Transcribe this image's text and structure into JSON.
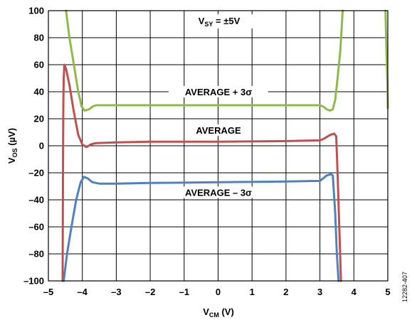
{
  "chart_data": {
    "type": "line",
    "xlabel_main": "V",
    "xlabel_sub": "CM",
    "xlabel_unit": " (V)",
    "ylabel_main": "V",
    "ylabel_sub": "OS",
    "ylabel_unit": " (µV)",
    "xlim": [
      -5,
      5
    ],
    "ylim": [
      -100,
      100
    ],
    "xticks": [
      "–5",
      "–4",
      "–3",
      "–2",
      "–1",
      "0",
      "1",
      "2",
      "3",
      "4",
      "5"
    ],
    "yticks": [
      "100",
      "80",
      "60",
      "40",
      "20",
      "0",
      "–20",
      "–40",
      "–60",
      "–80",
      "–100"
    ],
    "grid": true,
    "series": [
      {
        "name": "AVERAGE + 3σ",
        "color": "#8fba4a",
        "points": [
          [
            -4.48,
            100
          ],
          [
            -4.38,
            80
          ],
          [
            -4.25,
            60
          ],
          [
            -4.12,
            40
          ],
          [
            -4.02,
            29
          ],
          [
            -3.93,
            26
          ],
          [
            -3.8,
            27
          ],
          [
            -3.7,
            29
          ],
          [
            -3.6,
            30
          ],
          [
            -3.0,
            30
          ],
          [
            -2.0,
            30
          ],
          [
            0.0,
            30
          ],
          [
            2.0,
            30
          ],
          [
            3.0,
            30
          ],
          [
            3.1,
            29
          ],
          [
            3.2,
            27
          ],
          [
            3.3,
            26
          ],
          [
            3.38,
            27
          ],
          [
            3.45,
            34
          ],
          [
            3.52,
            50
          ],
          [
            3.6,
            70
          ],
          [
            3.67,
            100
          ]
        ],
        "points_b": [
          [
            4.93,
            100
          ],
          [
            4.96,
            70
          ],
          [
            4.99,
            45
          ],
          [
            5.0,
            28
          ]
        ]
      },
      {
        "name": "AVERAGE",
        "color": "#c0504d",
        "points": [
          [
            -4.58,
            -100
          ],
          [
            -4.57,
            -20
          ],
          [
            -4.56,
            30
          ],
          [
            -4.55,
            50
          ],
          [
            -4.53,
            60
          ],
          [
            -4.48,
            57
          ],
          [
            -4.38,
            45
          ],
          [
            -4.25,
            25
          ],
          [
            -4.12,
            8
          ],
          [
            -4.0,
            1
          ],
          [
            -3.88,
            -1
          ],
          [
            -3.75,
            1
          ],
          [
            -3.6,
            2
          ],
          [
            -3.0,
            2.5
          ],
          [
            -2.0,
            3
          ],
          [
            0.0,
            3
          ],
          [
            2.0,
            3.5
          ],
          [
            3.0,
            4
          ],
          [
            3.1,
            5
          ],
          [
            3.3,
            8
          ],
          [
            3.42,
            9
          ],
          [
            3.48,
            7
          ],
          [
            3.52,
            -20
          ],
          [
            3.57,
            -60
          ],
          [
            3.62,
            -100
          ]
        ]
      },
      {
        "name": "AVERAGE – 3σ",
        "color": "#4f81bd",
        "points": [
          [
            -4.55,
            -100
          ],
          [
            -4.45,
            -80
          ],
          [
            -4.32,
            -60
          ],
          [
            -4.18,
            -40
          ],
          [
            -4.05,
            -27
          ],
          [
            -3.95,
            -23
          ],
          [
            -3.85,
            -24
          ],
          [
            -3.7,
            -27
          ],
          [
            -3.5,
            -28
          ],
          [
            -3.0,
            -28
          ],
          [
            -2.0,
            -27.5
          ],
          [
            0.0,
            -27
          ],
          [
            2.0,
            -26.5
          ],
          [
            3.0,
            -26
          ],
          [
            3.1,
            -24
          ],
          [
            3.2,
            -22
          ],
          [
            3.33,
            -21
          ],
          [
            3.38,
            -22
          ],
          [
            3.45,
            -50
          ],
          [
            3.5,
            -80
          ],
          [
            3.55,
            -100
          ]
        ]
      }
    ],
    "annotations": {
      "vsy_main": "V",
      "vsy_sub": "SY",
      "vsy_value": " = ±5V",
      "avg_plus": "AVERAGE + 3σ",
      "avg": "AVERAGE",
      "avg_minus": "AVERAGE – 3σ"
    },
    "figure_id": "12282-407"
  }
}
